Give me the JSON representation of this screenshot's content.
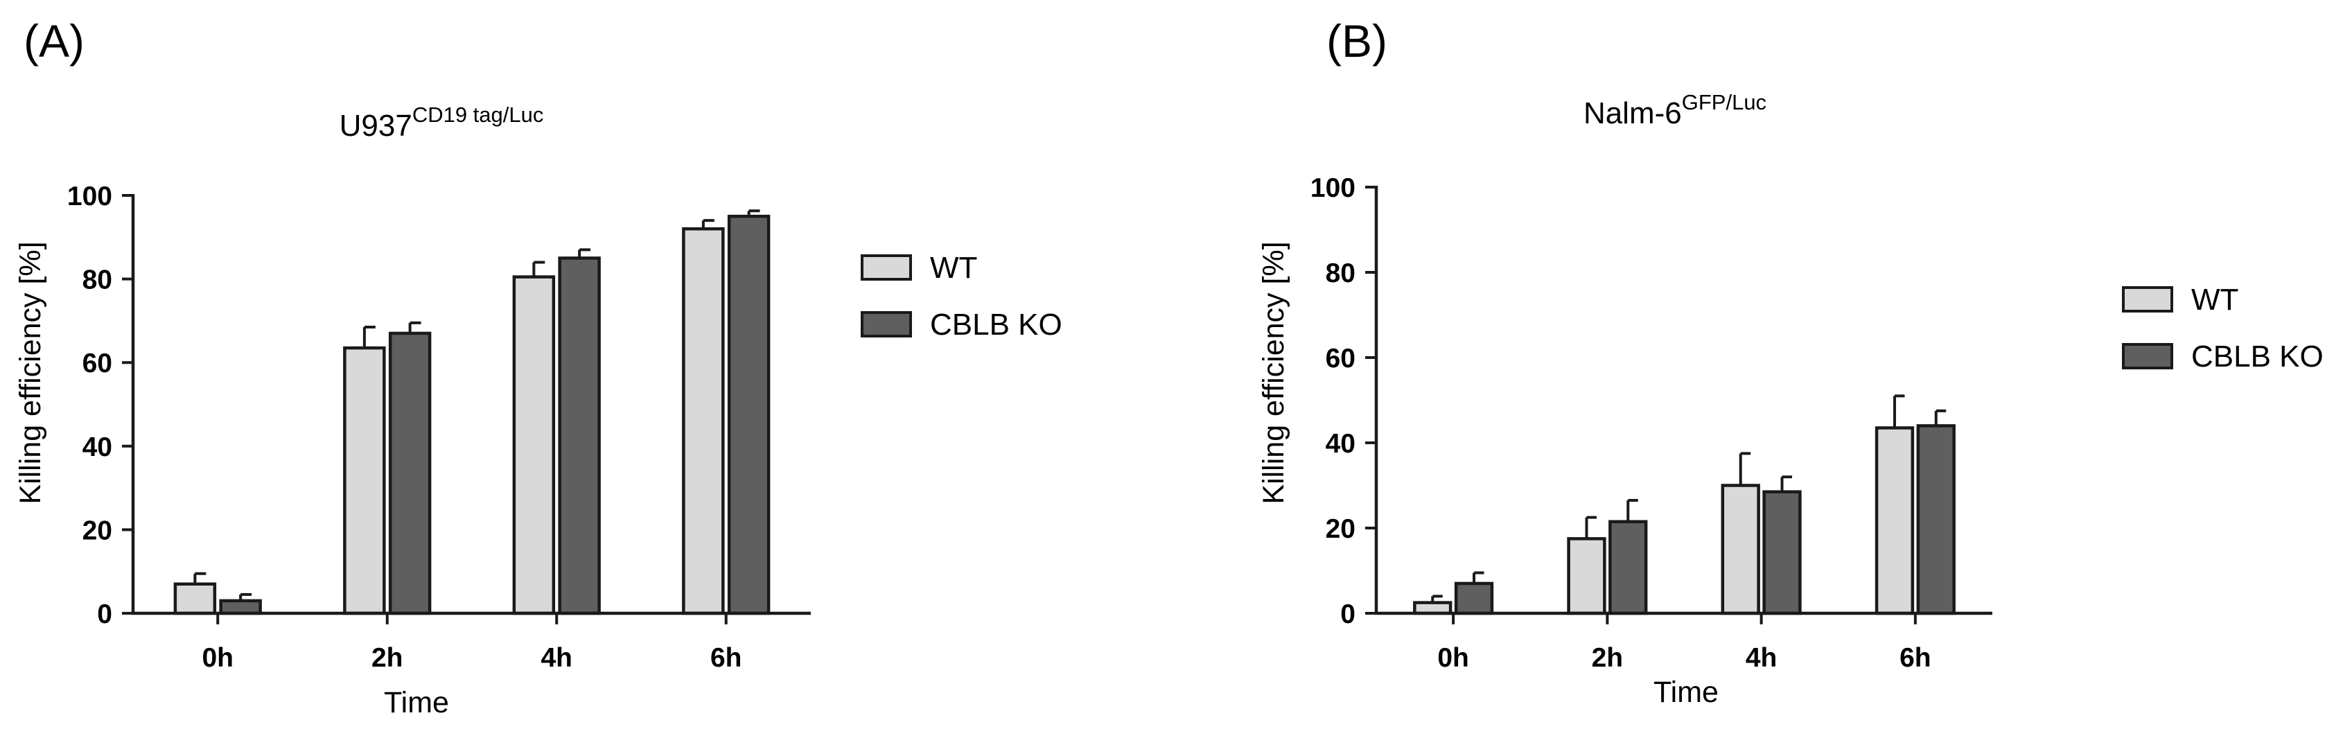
{
  "chart_data": [
    {
      "panel_label": "(A)",
      "type": "bar",
      "title": {
        "main": "U937",
        "sup": "CD19 tag/Luc"
      },
      "xlabel": "Time",
      "ylabel": "Killing efficiency [%]",
      "ylim": [
        0,
        100
      ],
      "yticks": [
        "0",
        "20",
        "40",
        "60",
        "80",
        "100"
      ],
      "categories": [
        "0h",
        "2h",
        "4h",
        "6h"
      ],
      "series": [
        {
          "name": "WT",
          "color": "#d9d9d9",
          "values": [
            7,
            63.5,
            80.5,
            92
          ],
          "errors": [
            2.5,
            5,
            3.5,
            2
          ]
        },
        {
          "name": "CBLB KO",
          "color": "#5f5f5f",
          "values": [
            3,
            67,
            85,
            95
          ],
          "errors": [
            1.5,
            2.5,
            2,
            1.3
          ]
        }
      ],
      "legend": "right",
      "grid": false
    },
    {
      "panel_label": "(B)",
      "type": "bar",
      "title": {
        "main": "Nalm-6",
        "sup": "GFP/Luc"
      },
      "xlabel": "Time",
      "ylabel": "Killing efficiency [%]",
      "ylim": [
        0,
        100
      ],
      "yticks": [
        "0",
        "20",
        "40",
        "60",
        "80",
        "100"
      ],
      "categories": [
        "0h",
        "2h",
        "4h",
        "6h"
      ],
      "series": [
        {
          "name": "WT",
          "color": "#d9d9d9",
          "values": [
            2.5,
            17.5,
            30,
            43.5
          ],
          "errors": [
            1.5,
            5,
            7.5,
            7.5
          ]
        },
        {
          "name": "CBLB KO",
          "color": "#5f5f5f",
          "values": [
            7,
            21.5,
            28.5,
            44
          ],
          "errors": [
            2.5,
            5,
            3.5,
            3.5
          ]
        }
      ],
      "legend": "right",
      "grid": false
    }
  ]
}
